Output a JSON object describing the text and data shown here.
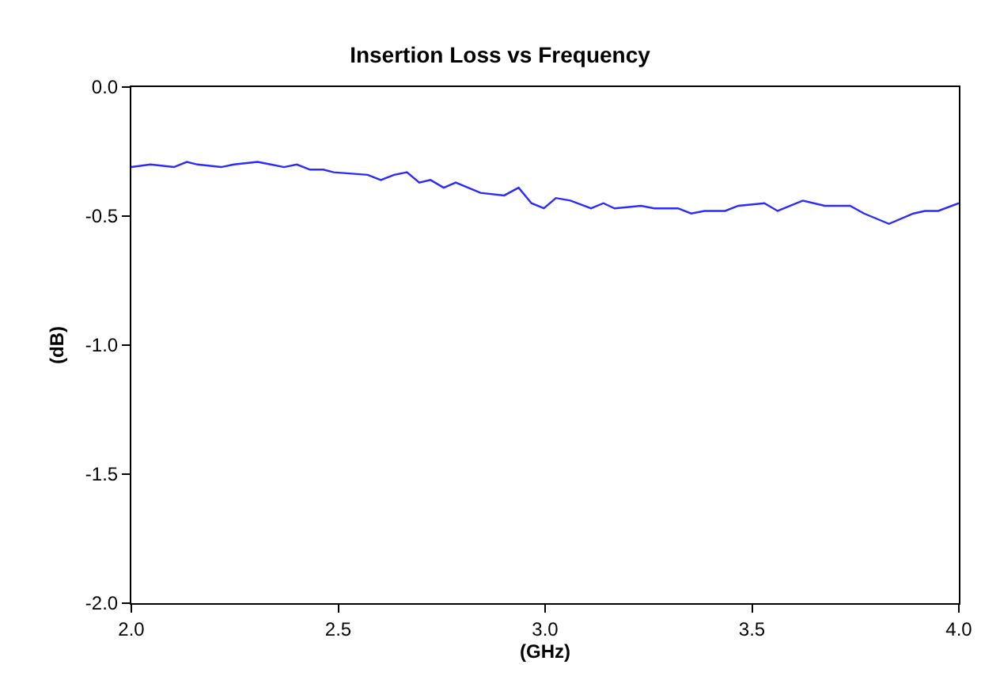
{
  "chart_data": {
    "type": "line",
    "title": "Insertion Loss vs Frequency",
    "xlabel": "(GHz)",
    "ylabel": "(dB)",
    "xlim": [
      2.0,
      4.0
    ],
    "xticks": [
      {
        "value": 2.0,
        "label": "2.0"
      },
      {
        "value": 2.5,
        "label": "2.5"
      },
      {
        "value": 3.0,
        "label": "3.0"
      },
      {
        "value": 3.5,
        "label": "3.5"
      },
      {
        "value": 4.0,
        "label": "4.0"
      }
    ],
    "ylim": [
      -2.0,
      0.0
    ],
    "yticks": [
      {
        "value": -2.0,
        "label": "-2.0"
      },
      {
        "value": -1.5,
        "label": "-1.5"
      },
      {
        "value": -1.0,
        "label": "-1.0"
      },
      {
        "value": -0.5,
        "label": "-0.5"
      },
      {
        "value": 0.0,
        "label": "0.0"
      }
    ],
    "marker": "none",
    "line_style": "solid",
    "x": [
      2.0,
      2.046,
      2.103,
      2.134,
      2.16,
      2.217,
      2.248,
      2.305,
      2.337,
      2.369,
      2.4,
      2.432,
      2.464,
      2.489,
      2.571,
      2.603,
      2.635,
      2.666,
      2.696,
      2.723,
      2.755,
      2.784,
      2.844,
      2.901,
      2.936,
      2.967,
      2.997,
      3.026,
      3.061,
      3.111,
      3.141,
      3.168,
      3.232,
      3.264,
      3.321,
      3.353,
      3.385,
      3.435,
      3.467,
      3.53,
      3.562,
      3.623,
      3.676,
      3.737,
      3.771,
      3.831,
      3.89,
      3.918,
      3.95,
      4.0
    ],
    "series": [
      {
        "color": "#2b2bff",
        "values": [
          -0.31,
          -0.3,
          -0.31,
          -0.29,
          -0.3,
          -0.31,
          -0.3,
          -0.29,
          -0.3,
          -0.31,
          -0.3,
          -0.32,
          -0.32,
          -0.33,
          -0.34,
          -0.36,
          -0.34,
          -0.33,
          -0.37,
          -0.36,
          -0.39,
          -0.37,
          -0.41,
          -0.42,
          -0.39,
          -0.45,
          -0.47,
          -0.43,
          -0.44,
          -0.47,
          -0.45,
          -0.47,
          -0.46,
          -0.47,
          -0.47,
          -0.49,
          -0.48,
          -0.48,
          -0.46,
          -0.45,
          -0.48,
          -0.44,
          -0.46,
          -0.46,
          -0.49,
          -0.53,
          -0.49,
          -0.48,
          -0.48,
          -0.45
        ]
      }
    ]
  }
}
